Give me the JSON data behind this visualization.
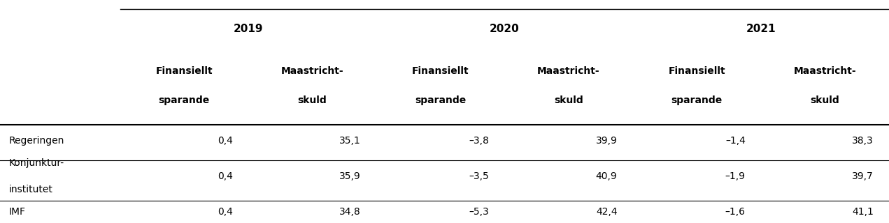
{
  "years": [
    "2019",
    "2020",
    "2021"
  ],
  "col_headers_line1": [
    "Finansiellt",
    "Maastricht-",
    "Finansiellt",
    "Maastricht-",
    "Finansiellt",
    "Maastricht-"
  ],
  "col_headers_line2": [
    "sparande",
    "skuld",
    "sparande",
    "skuld",
    "sparande",
    "skuld"
  ],
  "row_labels": [
    [
      "Regeringen",
      ""
    ],
    [
      "Konjunktur-",
      "institutet"
    ],
    [
      "IMF",
      ""
    ]
  ],
  "data": [
    [
      "0,4",
      "35,1",
      "–3,8",
      "39,9",
      "–1,4",
      "38,3"
    ],
    [
      "0,4",
      "35,9",
      "–3,5",
      "40,9",
      "–1,9",
      "39,7"
    ],
    [
      "0,4",
      "34,8",
      "–5,3",
      "42,4",
      "–1,6",
      "41,1"
    ]
  ],
  "bg_color": "#ffffff",
  "text_color": "#000000",
  "header_fontsize": 10,
  "data_fontsize": 10,
  "year_fontsize": 11
}
